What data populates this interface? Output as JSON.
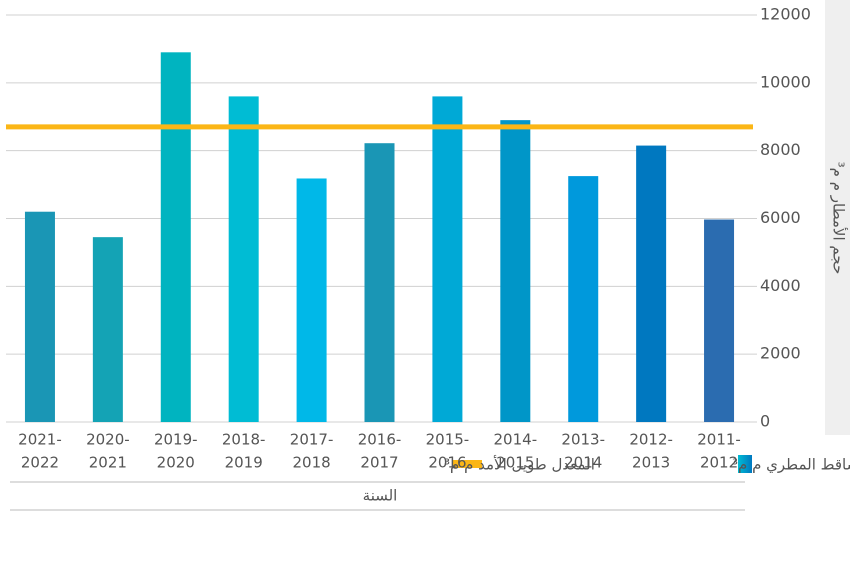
{
  "chart_data": {
    "type": "bar",
    "categories": [
      [
        "2021-",
        "2022"
      ],
      [
        "2020-",
        "2021"
      ],
      [
        "2019-",
        "2020"
      ],
      [
        "2018-",
        "2019"
      ],
      [
        "2017-",
        "2018"
      ],
      [
        "2016-",
        "2017"
      ],
      [
        "2015-",
        "2016"
      ],
      [
        "2014-",
        "2015"
      ],
      [
        "2013-",
        "2014"
      ],
      [
        "2012-",
        "2013"
      ],
      [
        "2011-",
        "2012"
      ]
    ],
    "series": [
      {
        "name": "الساقط المطري م م³",
        "colors": [
          "#1a96b5",
          "#14a3b5",
          "#00b4c0",
          "#00bcd4",
          "#00b8e8",
          "#1a96b5",
          "#00a9d6",
          "#0096c8",
          "#0099dc",
          "#0078c0",
          "#2b6cb0"
        ],
        "values": [
          6200,
          5450,
          10900,
          9600,
          7180,
          8220,
          9600,
          8900,
          7250,
          8150,
          5970
        ]
      },
      {
        "name": "المعدل طويل الأمد م م³",
        "color": "#fbb616",
        "value": 8700
      }
    ],
    "xlabel": "السنة",
    "ylabel": "حجم الأمطار م م³",
    "ylim": [
      0,
      12000
    ],
    "yticks": [
      0,
      2000,
      4000,
      6000,
      8000,
      10000,
      12000
    ],
    "grid": true
  }
}
